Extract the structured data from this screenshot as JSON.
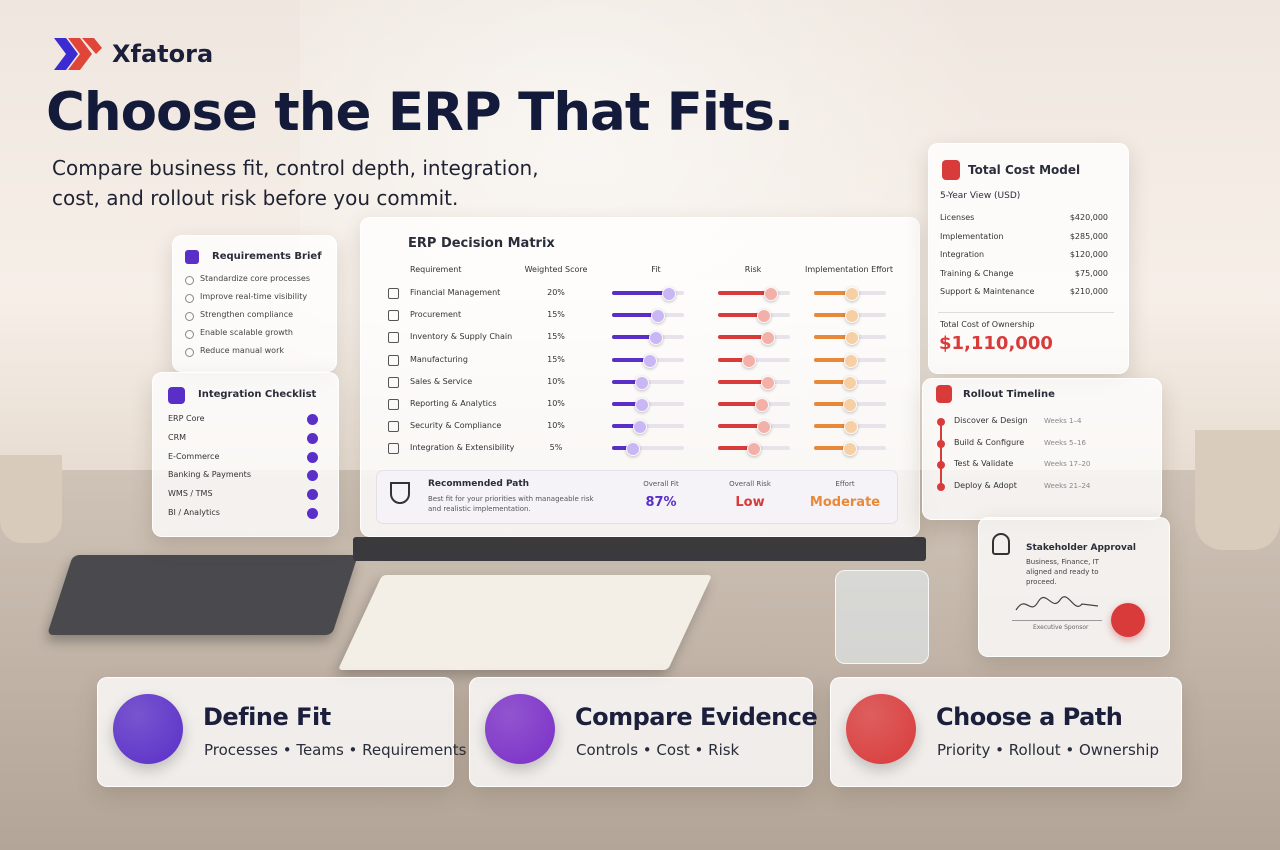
{
  "brand": "Xfatora",
  "header": {
    "title": "Choose the ERP That Fits.",
    "subtitle": [
      "Compare business fit, control depth, integration,",
      "cost, and rollout risk before you commit."
    ]
  },
  "requirements_brief": {
    "title": "Requirements Brief",
    "items": [
      "Standardize core processes",
      "Improve real-time visibility",
      "Strengthen compliance",
      "Enable scalable growth",
      "Reduce manual work"
    ]
  },
  "integration_checklist": {
    "title": "Integration Checklist",
    "items": [
      "ERP Core",
      "CRM",
      "E-Commerce",
      "Banking & Payments",
      "WMS / TMS",
      "BI / Analytics"
    ]
  },
  "decision_matrix": {
    "title": "ERP Decision Matrix",
    "columns": [
      "Requirement",
      "Weighted Score",
      "Fit",
      "Risk",
      "Implementation Effort"
    ],
    "rows": [
      {
        "requirement": "Financial Management",
        "weight": "20%",
        "fit": 78,
        "risk": 72,
        "effort": 52
      },
      {
        "requirement": "Procurement",
        "weight": "15%",
        "fit": 62,
        "risk": 62,
        "effort": 52
      },
      {
        "requirement": "Inventory & Supply Chain",
        "weight": "15%",
        "fit": 60,
        "risk": 68,
        "effort": 52
      },
      {
        "requirement": "Manufacturing",
        "weight": "15%",
        "fit": 52,
        "risk": 42,
        "effort": 50
      },
      {
        "requirement": "Sales & Service",
        "weight": "10%",
        "fit": 40,
        "risk": 68,
        "effort": 48
      },
      {
        "requirement": "Reporting & Analytics",
        "weight": "10%",
        "fit": 40,
        "risk": 60,
        "effort": 48
      },
      {
        "requirement": "Security & Compliance",
        "weight": "10%",
        "fit": 37,
        "risk": 62,
        "effort": 50
      },
      {
        "requirement": "Integration & Extensibility",
        "weight": "5%",
        "fit": 28,
        "risk": 48,
        "effort": 48
      }
    ],
    "recommendation": {
      "title": "Recommended Path",
      "description": "Best fit for your priorities with manageable risk and realistic implementation.",
      "metrics": [
        {
          "label": "Overall Fit",
          "value": "87%"
        },
        {
          "label": "Overall Risk",
          "value": "Low"
        },
        {
          "label": "Effort",
          "value": "Moderate"
        }
      ]
    }
  },
  "cost_model": {
    "title": "Total Cost Model",
    "subtitle": "5-Year View (USD)",
    "rows": [
      {
        "label": "Licenses",
        "amount": "$420,000"
      },
      {
        "label": "Implementation",
        "amount": "$285,000"
      },
      {
        "label": "Integration",
        "amount": "$120,000"
      },
      {
        "label": "Training & Change",
        "amount": "$75,000"
      },
      {
        "label": "Support & Maintenance",
        "amount": "$210,000"
      }
    ],
    "total_label": "Total Cost of Ownership",
    "total": "$1,110,000"
  },
  "rollout_timeline": {
    "title": "Rollout Timeline",
    "phases": [
      {
        "name": "Discover & Design",
        "weeks": "Weeks 1–4"
      },
      {
        "name": "Build & Configure",
        "weeks": "Weeks 5–16"
      },
      {
        "name": "Test & Validate",
        "weeks": "Weeks 17–20"
      },
      {
        "name": "Deploy & Adopt",
        "weeks": "Weeks 21–24"
      }
    ]
  },
  "stakeholder_approval": {
    "title": "Stakeholder Approval",
    "text": "Business, Finance, IT aligned and ready to proceed.",
    "signer": "Executive Sponsor"
  },
  "features": [
    {
      "title": "Define Fit",
      "details": "Processes • Teams • Requirements"
    },
    {
      "title": "Compare Evidence",
      "details": "Controls • Cost • Risk"
    },
    {
      "title": "Choose a Path",
      "details": "Priority • Rollout • Ownership"
    }
  ]
}
